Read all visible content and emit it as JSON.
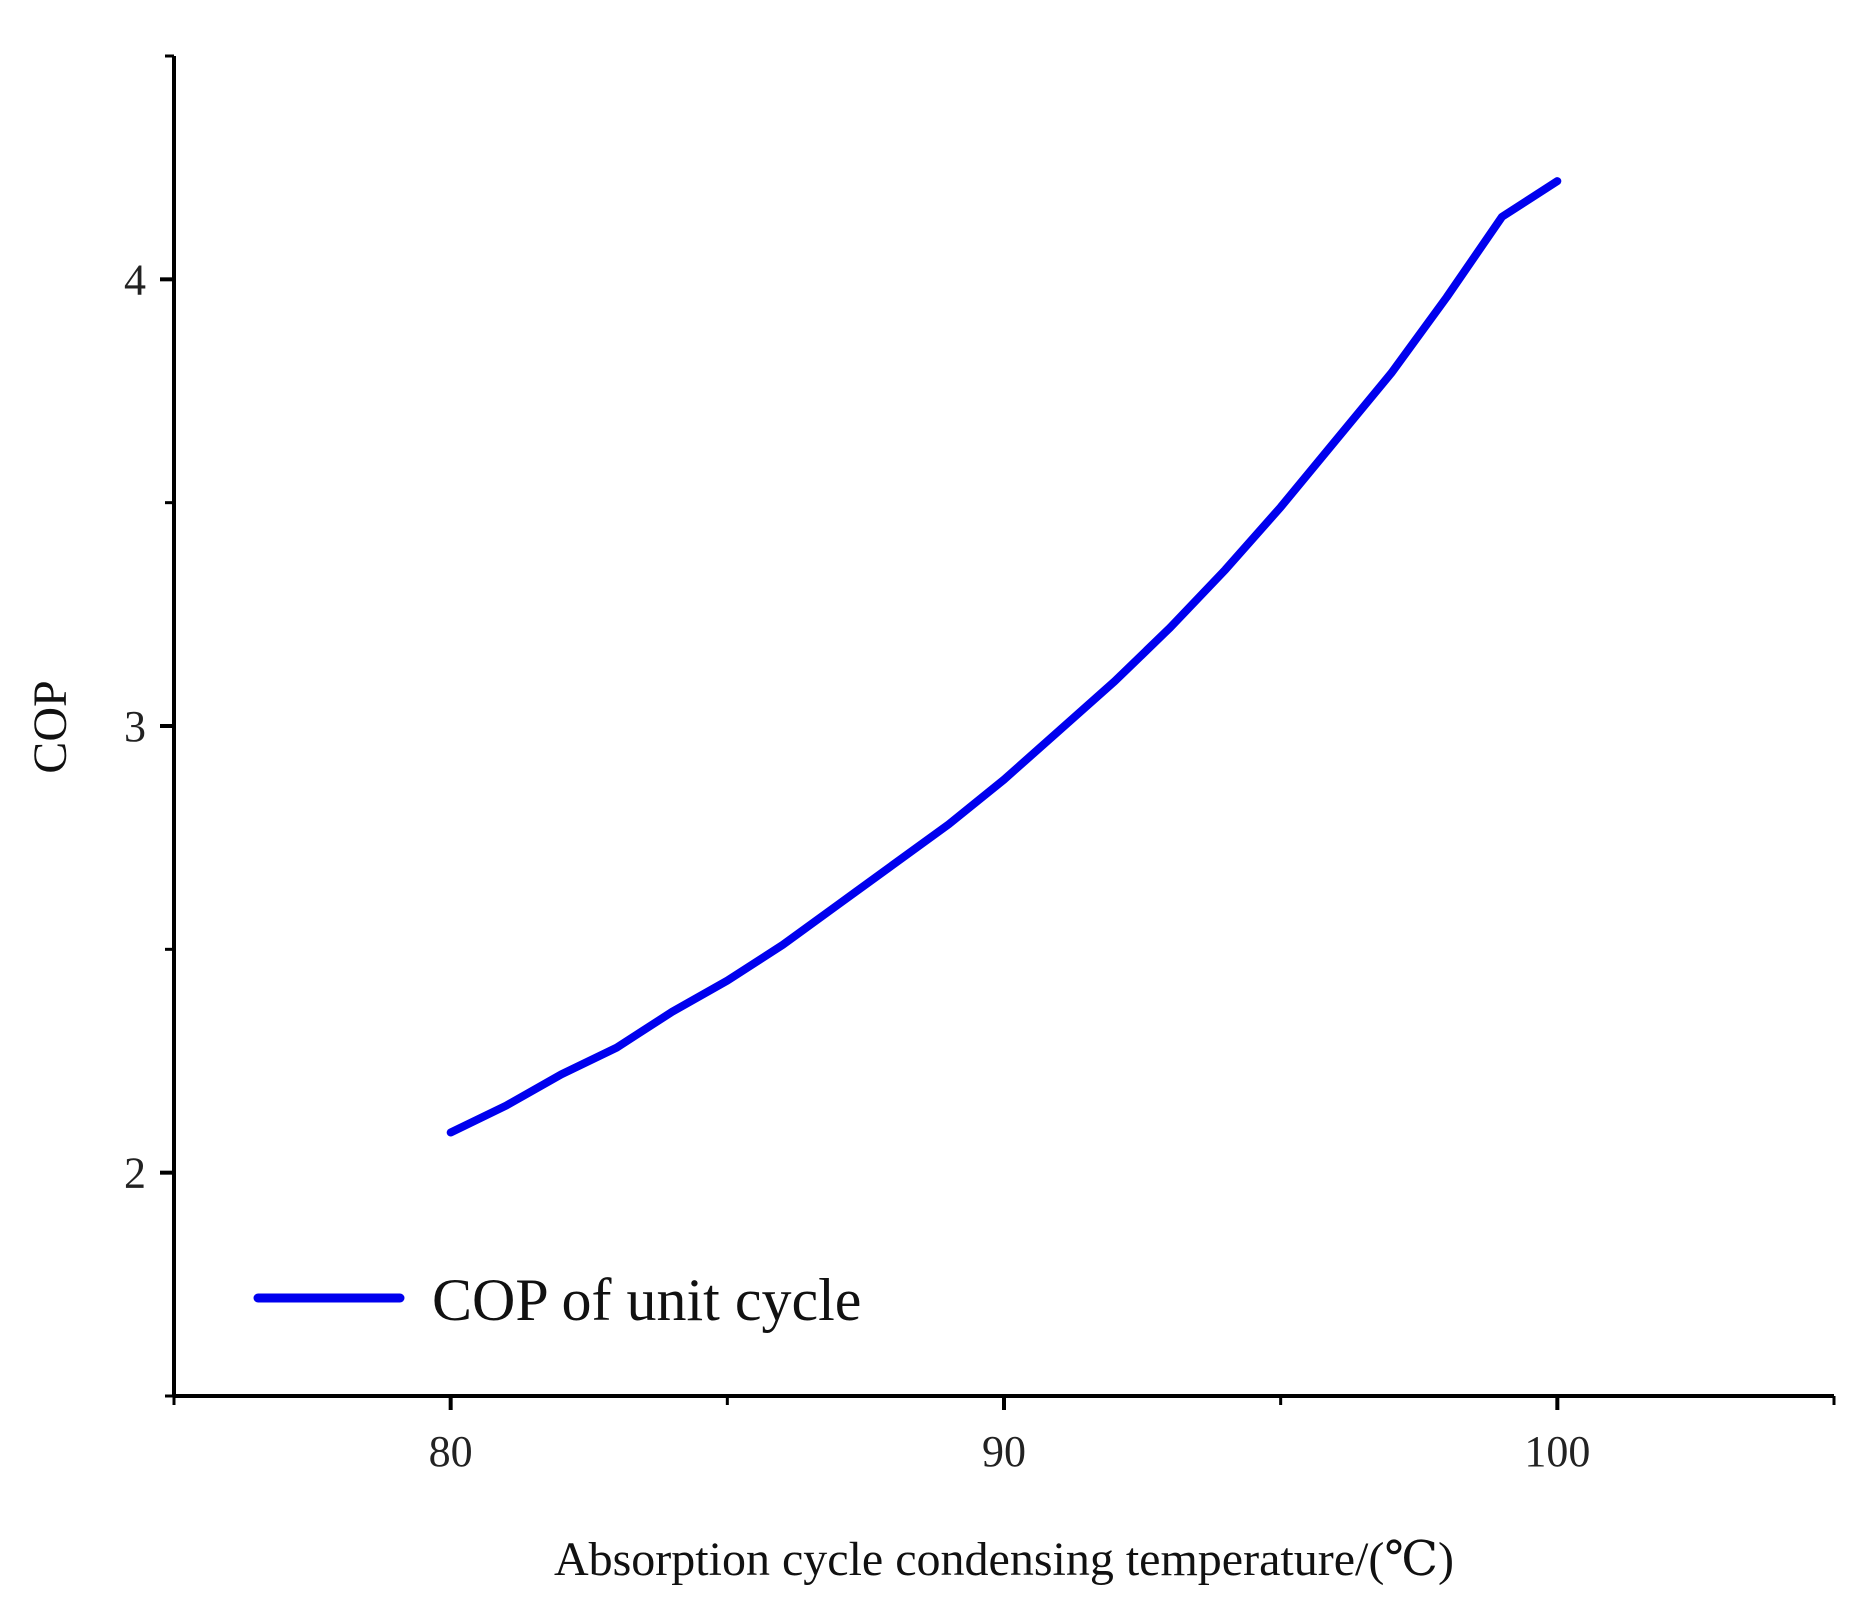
{
  "chart_data": {
    "type": "line",
    "title": "",
    "xlabel": "Absorption cycle condensing temperature/(℃)",
    "ylabel": "COP",
    "xlim": [
      75,
      105
    ],
    "ylim": [
      1.5,
      4.5
    ],
    "x_ticks": [
      80,
      90,
      100
    ],
    "x_minor_ticks": [
      75,
      85,
      95,
      105
    ],
    "y_ticks": [
      2,
      3,
      4
    ],
    "y_minor_ticks": [
      1.5,
      2.5,
      3.5,
      4.5
    ],
    "grid": false,
    "legend_position": "bottom-left",
    "series": [
      {
        "name": "COP of unit cycle",
        "color": "#0000ee",
        "x": [
          80,
          81,
          82,
          83,
          84,
          85,
          86,
          87,
          88,
          89,
          90,
          91,
          92,
          93,
          94,
          95,
          96,
          97,
          98,
          99,
          100
        ],
        "y": [
          2.09,
          2.15,
          2.22,
          2.28,
          2.36,
          2.43,
          2.51,
          2.6,
          2.69,
          2.78,
          2.88,
          2.99,
          3.1,
          3.22,
          3.35,
          3.49,
          3.64,
          3.79,
          3.96,
          4.14,
          4.22
        ]
      }
    ]
  }
}
